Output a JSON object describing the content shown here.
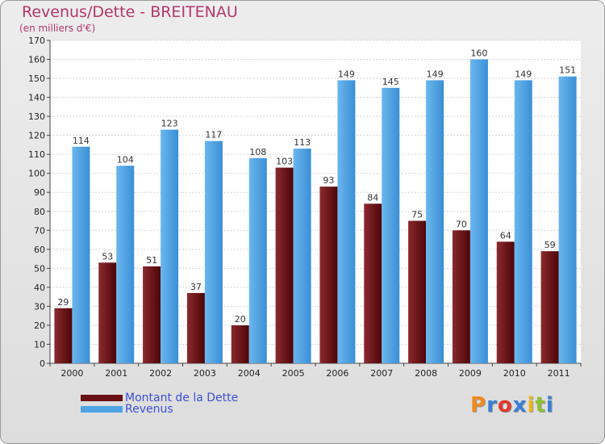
{
  "header": {
    "title": "Revenus/Dette - BREITENAU",
    "subtitle": "(en milliers d'€)"
  },
  "legend": {
    "items": [
      {
        "label": "Montant de la Dette",
        "color": "#6a0f12"
      },
      {
        "label": "Revenus",
        "color": "#4fa3e4"
      }
    ]
  },
  "logo": {
    "text": "Proxiti",
    "colors": [
      "#ef8a1f",
      "#3a7fd6",
      "#e0382b",
      "#3a7fd6",
      "#f0b41c",
      "#8abf2f",
      "#3a7fd6"
    ]
  },
  "chart_data": {
    "type": "bar",
    "categories": [
      "2000",
      "2001",
      "2002",
      "2003",
      "2004",
      "2005",
      "2006",
      "2007",
      "2008",
      "2009",
      "2010",
      "2011"
    ],
    "series": [
      {
        "name": "Montant de la Dette",
        "values": [
          29,
          53,
          51,
          37,
          20,
          103,
          93,
          84,
          75,
          70,
          64,
          59
        ],
        "color": "#6a0f12"
      },
      {
        "name": "Revenus",
        "values": [
          114,
          104,
          123,
          117,
          108,
          113,
          149,
          145,
          149,
          160,
          149,
          151
        ],
        "color": "#4fa3e4"
      }
    ],
    "title": "Revenus/Dette - BREITENAU",
    "ylabel": "(en milliers d'€)",
    "ylim": [
      0,
      170
    ],
    "ytick_step": 10,
    "grid": true,
    "legend_position": "bottom-left"
  }
}
